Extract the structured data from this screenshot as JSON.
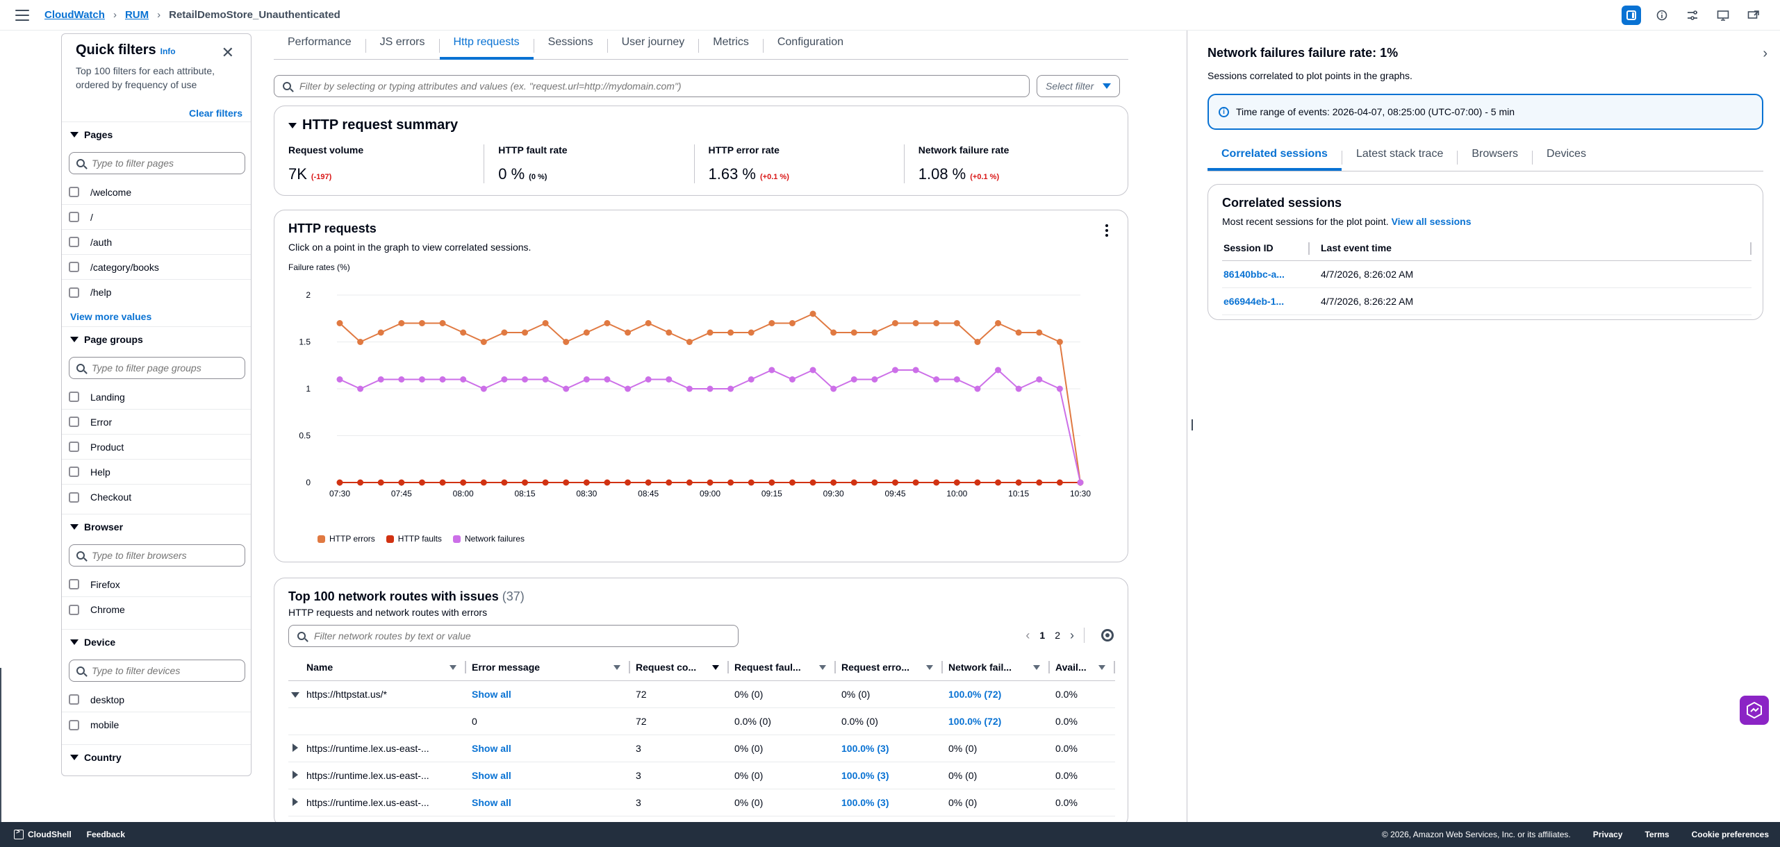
{
  "breadcrumbs": [
    "CloudWatch",
    "RUM",
    "RetailDemoStore_Unauthenticated"
  ],
  "quick_filters": {
    "title": "Quick filters",
    "info": "Info",
    "description": "Top 100 filters for each attribute, ordered by frequency of use",
    "clear": "Clear filters",
    "more_values": "View more values",
    "groups": [
      {
        "name": "Pages",
        "placeholder": "Type to filter pages",
        "items": [
          "/welcome",
          "/",
          "/auth",
          "/category/books",
          "/help"
        ]
      },
      {
        "name": "Page groups",
        "placeholder": "Type to filter page groups",
        "items": [
          "Landing",
          "Error",
          "Product",
          "Help",
          "Checkout"
        ]
      },
      {
        "name": "Browser",
        "placeholder": "Type to filter browsers",
        "items": [
          "Firefox",
          "Chrome"
        ]
      },
      {
        "name": "Device",
        "placeholder": "Type to filter devices",
        "items": [
          "desktop",
          "mobile"
        ]
      },
      {
        "name": "Country"
      }
    ]
  },
  "tabs": [
    "Performance",
    "JS errors",
    "Http requests",
    "Sessions",
    "User journey",
    "Metrics",
    "Configuration"
  ],
  "active_tab": "Http requests",
  "filter": {
    "placeholder": "Filter by selecting or typing attributes and values (ex. \"request.url=http://mydomain.com\")",
    "select_label": "Select filter"
  },
  "summary": {
    "title": "HTTP request summary",
    "metrics": [
      {
        "label": "Request volume",
        "value": "7K",
        "delta": "(-197)"
      },
      {
        "label": "HTTP fault rate",
        "value": "0 %",
        "delta": "(0 %)"
      },
      {
        "label": "HTTP error rate",
        "value": "1.63 %",
        "delta": "(+0.1 %)"
      },
      {
        "label": "Network failure rate",
        "value": "1.08 %",
        "delta": "(+0.1 %)"
      }
    ]
  },
  "http_chart": {
    "title": "HTTP requests",
    "subtitle": "Click on a point in the graph to view correlated sessions."
  },
  "chart_data": {
    "type": "line",
    "ylabel": "Failure rates (%)",
    "ylim": [
      0,
      2
    ],
    "yticks": [
      "0",
      "0.5",
      "1",
      "1.5",
      "2"
    ],
    "x": [
      "07:30",
      "07:35",
      "07:40",
      "07:45",
      "07:50",
      "07:55",
      "08:00",
      "08:05",
      "08:10",
      "08:15",
      "08:20",
      "08:25",
      "08:30",
      "08:35",
      "08:40",
      "08:45",
      "08:50",
      "08:55",
      "09:00",
      "09:05",
      "09:10",
      "09:15",
      "09:20",
      "09:25",
      "09:30",
      "09:35",
      "09:40",
      "09:45",
      "09:50",
      "09:55",
      "10:00",
      "10:05",
      "10:10",
      "10:15",
      "10:20",
      "10:25",
      "10:30"
    ],
    "xticks": [
      "07:30",
      "07:45",
      "08:00",
      "08:15",
      "08:30",
      "08:45",
      "09:00",
      "09:15",
      "09:30",
      "09:45",
      "10:00",
      "10:15",
      "10:30"
    ],
    "series": [
      {
        "name": "HTTP errors",
        "color": "#e07941",
        "values": [
          1.7,
          1.5,
          1.6,
          1.7,
          1.7,
          1.7,
          1.6,
          1.5,
          1.6,
          1.6,
          1.7,
          1.5,
          1.6,
          1.7,
          1.6,
          1.7,
          1.6,
          1.5,
          1.6,
          1.6,
          1.6,
          1.7,
          1.7,
          1.8,
          1.6,
          1.6,
          1.6,
          1.7,
          1.7,
          1.7,
          1.7,
          1.5,
          1.7,
          1.6,
          1.6,
          1.5,
          0
        ]
      },
      {
        "name": "HTTP faults",
        "color": "#d13212",
        "values": [
          0,
          0,
          0,
          0,
          0,
          0,
          0,
          0,
          0,
          0,
          0,
          0,
          0,
          0,
          0,
          0,
          0,
          0,
          0,
          0,
          0,
          0,
          0,
          0,
          0,
          0,
          0,
          0,
          0,
          0,
          0,
          0,
          0,
          0,
          0,
          0,
          0
        ]
      },
      {
        "name": "Network failures",
        "color": "#cc6fe8",
        "values": [
          1.1,
          1.0,
          1.1,
          1.1,
          1.1,
          1.1,
          1.1,
          1.0,
          1.1,
          1.1,
          1.1,
          1.0,
          1.1,
          1.1,
          1.0,
          1.1,
          1.1,
          1.0,
          1.0,
          1.0,
          1.1,
          1.2,
          1.1,
          1.2,
          1.0,
          1.1,
          1.1,
          1.2,
          1.2,
          1.1,
          1.1,
          1.0,
          1.2,
          1.0,
          1.1,
          1.0,
          0
        ]
      }
    ],
    "legend": "bottom-left",
    "grid": true
  },
  "routes": {
    "title": "Top 100 network routes with issues",
    "count": "(37)",
    "subtitle": "HTTP requests and network routes with errors",
    "search_placeholder": "Filter network routes by text or value",
    "pages": [
      "1",
      "2"
    ],
    "columns": [
      "Name",
      "Error message",
      "Request co...",
      "Request faul...",
      "Request erro...",
      "Network fail...",
      "Avail..."
    ],
    "rows": [
      {
        "expand": "open",
        "name": "https://httpstat.us/*",
        "error": "Show all",
        "count": "72",
        "faults": "0% (0)",
        "errors": "0% (0)",
        "netfail": "100.0% (72)",
        "avail": "0.0%"
      },
      {
        "expand": "none",
        "name": "",
        "error": "0",
        "count": "72",
        "faults": "0.0% (0)",
        "errors": "0.0% (0)",
        "netfail": "100.0% (72)",
        "avail": "0.0%"
      },
      {
        "expand": "closed",
        "name": "https://runtime.lex.us-east-...",
        "error": "Show all",
        "count": "3",
        "faults": "0% (0)",
        "errors": "100.0% (3)",
        "netfail": "0% (0)",
        "avail": "0.0%"
      },
      {
        "expand": "closed",
        "name": "https://runtime.lex.us-east-...",
        "error": "Show all",
        "count": "3",
        "faults": "0% (0)",
        "errors": "100.0% (3)",
        "netfail": "0% (0)",
        "avail": "0.0%"
      },
      {
        "expand": "closed",
        "name": "https://runtime.lex.us-east-...",
        "error": "Show all",
        "count": "3",
        "faults": "0% (0)",
        "errors": "100.0% (3)",
        "netfail": "0% (0)",
        "avail": "0.0%"
      }
    ]
  },
  "panel": {
    "title": "Network failures failure rate: 1%",
    "subtitle": "Sessions correlated to plot points in the graphs.",
    "time_range": "Time range of events: 2026-04-07, 08:25:00 (UTC-07:00) - 5 min",
    "tabs": [
      "Correlated sessions",
      "Latest stack trace",
      "Browsers",
      "Devices"
    ],
    "card_title": "Correlated sessions",
    "card_sub": "Most recent sessions for the plot point.",
    "view_all": "View all sessions",
    "columns": [
      "Session ID",
      "Last event time"
    ],
    "sessions": [
      {
        "id": "86140bbc-a...",
        "time": "4/7/2026, 8:26:02 AM"
      },
      {
        "id": "e66944eb-1...",
        "time": "4/7/2026, 8:26:22 AM"
      }
    ]
  },
  "footer": {
    "cloudshell": "CloudShell",
    "feedback": "Feedback",
    "copyright": "© 2026, Amazon Web Services, Inc. or its affiliates.",
    "links": [
      "Privacy",
      "Terms",
      "Cookie preferences"
    ]
  }
}
